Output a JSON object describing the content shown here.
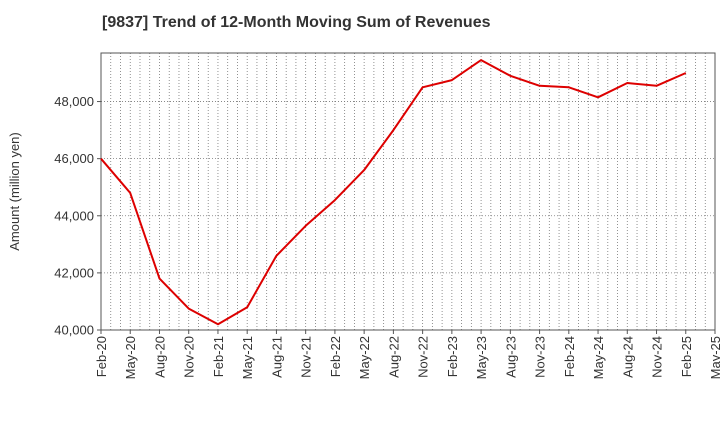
{
  "chart_data": {
    "type": "line",
    "title": "[9837]  Trend of 12-Month Moving Sum of Revenues",
    "xlabel": "",
    "ylabel": "Amount (million yen)",
    "ylim": [
      40000,
      49700
    ],
    "yticks": [
      40000,
      42000,
      44000,
      46000,
      48000
    ],
    "ytick_labels": [
      "40,000",
      "42,000",
      "44,000",
      "46,000",
      "48,000"
    ],
    "xtick_labels": [
      "Feb-20",
      "May-20",
      "Aug-20",
      "Nov-20",
      "Feb-21",
      "May-21",
      "Aug-21",
      "Nov-21",
      "Feb-22",
      "May-22",
      "Aug-22",
      "Nov-22",
      "Feb-23",
      "May-23",
      "Aug-23",
      "Nov-23",
      "Feb-24",
      "May-24",
      "Aug-24",
      "Nov-24",
      "Feb-25",
      "May-25"
    ],
    "grid": true,
    "series": [
      {
        "color": "#dd0000",
        "x": [
          "Feb-20",
          "May-20",
          "Aug-20",
          "Nov-20",
          "Feb-21",
          "May-21",
          "Aug-21",
          "Nov-21",
          "Feb-22",
          "May-22",
          "Aug-22",
          "Nov-22",
          "Feb-23",
          "May-23",
          "Aug-23",
          "Nov-23",
          "Feb-24",
          "May-24",
          "Aug-24",
          "Nov-24",
          "Feb-25"
        ],
        "values": [
          46000,
          44800,
          41800,
          40750,
          40200,
          40800,
          42600,
          43650,
          44550,
          45600,
          47000,
          48500,
          48750,
          49450,
          48900,
          48550,
          48500,
          48150,
          48650,
          48550,
          49000
        ]
      }
    ]
  }
}
